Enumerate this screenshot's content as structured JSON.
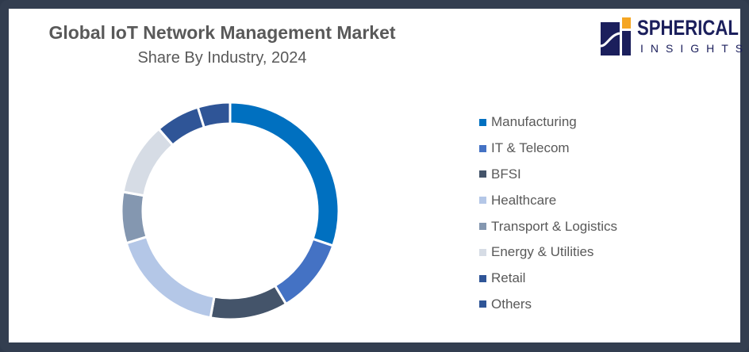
{
  "logo": {
    "line1": "SPHERICAL",
    "line2": "INSIGHTS"
  },
  "chart_data": {
    "type": "pie",
    "variant": "donut",
    "title": "Global IoT Network Management Market",
    "subtitle": "Share By Industry, 2024",
    "legend_position": "right",
    "categories": [
      "Manufacturing",
      "IT & Telecom",
      "BFSI",
      "Healthcare",
      "Transport & Logistics",
      "Energy & Utilities",
      "Retail",
      "Others"
    ],
    "values": [
      30.2,
      11.2,
      11.5,
      17.3,
      7.6,
      10.8,
      6.6,
      4.8
    ],
    "colors": [
      "#0070c0",
      "#4472c4",
      "#44546a",
      "#b4c7e7",
      "#8497b0",
      "#d6dce5",
      "#2f5597",
      "#2f5597"
    ]
  }
}
